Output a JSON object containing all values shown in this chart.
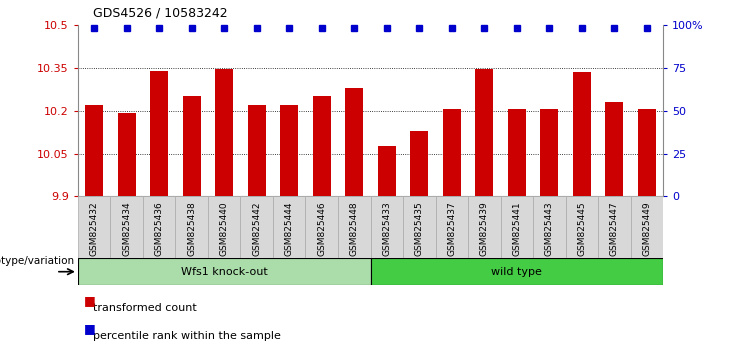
{
  "title": "GDS4526 / 10583242",
  "samples": [
    "GSM825432",
    "GSM825434",
    "GSM825436",
    "GSM825438",
    "GSM825440",
    "GSM825442",
    "GSM825444",
    "GSM825446",
    "GSM825448",
    "GSM825433",
    "GSM825435",
    "GSM825437",
    "GSM825439",
    "GSM825441",
    "GSM825443",
    "GSM825445",
    "GSM825447",
    "GSM825449"
  ],
  "bar_values": [
    10.22,
    10.19,
    10.34,
    10.25,
    10.345,
    10.22,
    10.22,
    10.25,
    10.28,
    10.075,
    10.13,
    10.205,
    10.345,
    10.205,
    10.205,
    10.335,
    10.23,
    10.205
  ],
  "percentile_values": [
    98,
    98,
    98,
    98,
    98,
    98,
    98,
    98,
    98,
    98,
    98,
    98,
    98,
    98,
    98,
    98,
    98,
    98
  ],
  "bar_color": "#cc0000",
  "percentile_color": "#0000cc",
  "ymin": 9.9,
  "ymax": 10.5,
  "yticks": [
    9.9,
    10.05,
    10.2,
    10.35,
    10.5
  ],
  "ytick_labels": [
    "9.9",
    "10.05",
    "10.2",
    "10.35",
    "10.5"
  ],
  "right_yticks": [
    0,
    25,
    50,
    75,
    100
  ],
  "right_ytick_labels": [
    "0",
    "25",
    "50",
    "75",
    "100%"
  ],
  "group1_label": "Wfs1 knock-out",
  "group2_label": "wild type",
  "group1_count": 9,
  "group2_count": 9,
  "group1_color": "#aaddaa",
  "group2_color": "#44cc44",
  "genotype_label": "genotype/variation",
  "legend_bar_label": "transformed count",
  "legend_dot_label": "percentile rank within the sample",
  "background_color": "#ffffff",
  "plot_bg_color": "#ffffff",
  "tick_label_color_left": "#cc0000",
  "tick_label_color_right": "#0000cc",
  "xtick_box_color": "#d8d8d8",
  "xtick_box_edge": "#aaaaaa"
}
